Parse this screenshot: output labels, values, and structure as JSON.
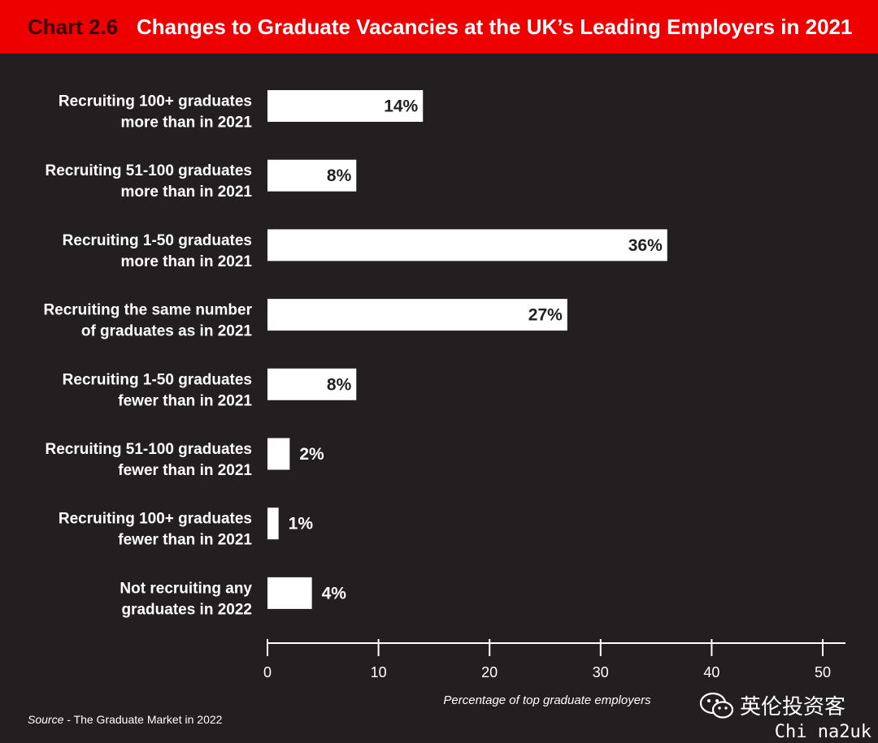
{
  "header": {
    "chart_number": "Chart 2.6",
    "title": "Changes to Graduate Vacancies at the UK’s Leading Employers in 2021"
  },
  "chart_data": {
    "type": "bar",
    "orientation": "horizontal",
    "categories": [
      [
        "Recruiting 100+ graduates",
        "more than in 2021"
      ],
      [
        "Recruiting 51-100 graduates",
        "more than in 2021"
      ],
      [
        "Recruiting 1-50 graduates",
        "more than in 2021"
      ],
      [
        "Recruiting the same number",
        "of graduates as in 2021"
      ],
      [
        "Recruiting 1-50 graduates",
        "fewer than in 2021"
      ],
      [
        "Recruiting 51-100 graduates",
        "fewer than in 2021"
      ],
      [
        "Recruiting 100+ graduates",
        "fewer than in 2021"
      ],
      [
        "Not recruiting any",
        "graduates in 2022"
      ]
    ],
    "values": [
      14,
      8,
      36,
      27,
      8,
      2,
      1,
      4
    ],
    "value_labels": [
      "14%",
      "8%",
      "36%",
      "27%",
      "8%",
      "2%",
      "1%",
      "4%"
    ],
    "xlabel": "Percentage of top graduate employers",
    "xlim": [
      0,
      50
    ],
    "xticks": [
      0,
      10,
      20,
      30,
      40,
      50
    ],
    "grid": false,
    "legend": "none",
    "colors": {
      "bar": "#ffffff",
      "background": "#231f20",
      "banner": "#ee0000"
    }
  },
  "footer": {
    "source_prefix": "Source",
    "source_text": " - The Graduate Market in 2022"
  },
  "watermarks": {
    "wechat_icon": "wechat-icon",
    "account_name": "英伦投资客",
    "site": "Chi na2uk"
  }
}
